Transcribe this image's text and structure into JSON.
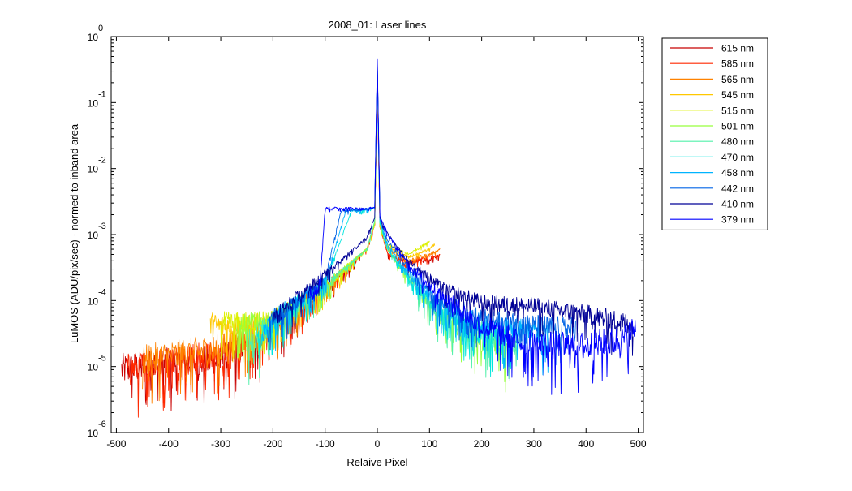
{
  "chart_data": {
    "type": "line",
    "title": "2008_01: Laser lines",
    "xlabel": "Relaive Pixel",
    "ylabel": "LuMOS (ADU/pix/sec) - normed to inband area",
    "xlim": [
      -510,
      510
    ],
    "ylim": [
      1e-06,
      1
    ],
    "yscale": "log",
    "grid": false,
    "legend_position": "outside-top-right",
    "x_ticks": [
      -500,
      -400,
      -300,
      -200,
      -100,
      0,
      100,
      200,
      300,
      400,
      500
    ],
    "x_tick_labels": [
      "-500",
      "-400",
      "-300",
      "-200",
      "-100",
      "0",
      "100",
      "200",
      "300",
      "400",
      "500"
    ],
    "y_ticks": [
      1e-06,
      1e-05,
      0.0001,
      0.001,
      0.01,
      0.1,
      1
    ],
    "y_tick_labels": [
      {
        "base": "10",
        "exp": "-6"
      },
      {
        "base": "10",
        "exp": "-5"
      },
      {
        "base": "10",
        "exp": "-4"
      },
      {
        "base": "10",
        "exp": "-3"
      },
      {
        "base": "10",
        "exp": "-2"
      },
      {
        "base": "10",
        "exp": "-1"
      },
      {
        "base": "10",
        "exp": "0"
      }
    ],
    "series": [
      {
        "name": "615 nm",
        "color": "#c80000",
        "x": [
          -490,
          -400,
          -300,
          -200,
          -100,
          -20,
          -5,
          0,
          5,
          20,
          60,
          100,
          120
        ],
        "y": [
          9e-06,
          1.1e-05,
          1.2e-05,
          3.5e-05,
          0.00014,
          0.0006,
          0.0014,
          0.2,
          0.0013,
          0.0005,
          0.00036,
          0.00042,
          0.00048
        ]
      },
      {
        "name": "585 nm",
        "color": "#ff2800",
        "x": [
          -480,
          -400,
          -300,
          -200,
          -100,
          -20,
          -5,
          0,
          5,
          20,
          60,
          100,
          120
        ],
        "y": [
          9e-06,
          1.2e-05,
          1.4e-05,
          3.8e-05,
          0.00015,
          0.0006,
          0.0014,
          0.22,
          0.0013,
          0.0005,
          0.00038,
          0.00045,
          0.0005
        ]
      },
      {
        "name": "565 nm",
        "color": "#ff8200",
        "x": [
          -450,
          -400,
          -300,
          -200,
          -100,
          -20,
          -5,
          0,
          5,
          20,
          60,
          100,
          120
        ],
        "y": [
          1.2e-05,
          1.4e-05,
          1.8e-05,
          4.2e-05,
          0.00016,
          0.0006,
          0.0014,
          0.25,
          0.0013,
          0.0006,
          0.0004,
          0.0005,
          0.0006
        ]
      },
      {
        "name": "545 nm",
        "color": "#ffc800",
        "x": [
          -320,
          -300,
          -250,
          -200,
          -100,
          -20,
          -5,
          0,
          5,
          20,
          60,
          100,
          110
        ],
        "y": [
          4.5e-05,
          4e-05,
          4e-05,
          4.5e-05,
          0.00015,
          0.0006,
          0.0014,
          0.27,
          0.0013,
          0.00065,
          0.00045,
          0.0006,
          0.0007
        ]
      },
      {
        "name": "515 nm",
        "color": "#dcf000",
        "x": [
          -300,
          -250,
          -200,
          -100,
          -20,
          -5,
          0,
          5,
          20,
          60,
          90,
          100
        ],
        "y": [
          4.5e-05,
          4.4e-05,
          5e-05,
          0.00016,
          0.0006,
          0.0015,
          0.3,
          0.0015,
          0.0007,
          0.0005,
          0.0007,
          0.0008
        ]
      },
      {
        "name": "501 nm",
        "color": "#96ff3c",
        "x": [
          -270,
          -250,
          -200,
          -100,
          -20,
          -5,
          0,
          5,
          20,
          60,
          120,
          200,
          250
        ],
        "y": [
          4e-05,
          4.2e-05,
          4.8e-05,
          0.00016,
          0.0006,
          0.0015,
          0.3,
          0.0014,
          0.0006,
          0.00022,
          6e-05,
          2.5e-05,
          2e-05
        ]
      },
      {
        "name": "480 nm",
        "color": "#50f0aa",
        "x": [
          -250,
          -200,
          -100,
          -20,
          -5,
          0,
          5,
          20,
          60,
          120,
          200,
          270
        ],
        "y": [
          2e-05,
          4.5e-05,
          0.00016,
          0.0006,
          0.0016,
          0.32,
          0.0015,
          0.0006,
          0.00022,
          6e-05,
          3e-05,
          2e-05
        ]
      },
      {
        "name": "470 nm",
        "color": "#00e6dc",
        "x": [
          -230,
          -200,
          -100,
          -50,
          -20,
          -5,
          0,
          5,
          20,
          60,
          120,
          200,
          260
        ],
        "y": [
          2e-05,
          4.5e-05,
          0.00018,
          0.00225,
          0.0024,
          0.0025,
          0.34,
          0.0015,
          0.0006,
          0.00022,
          7e-05,
          3e-05,
          2.5e-05
        ]
      },
      {
        "name": "458 nm",
        "color": "#00b4ff",
        "x": [
          -220,
          -200,
          -100,
          -60,
          -20,
          -5,
          0,
          5,
          20,
          60,
          120,
          200,
          280,
          330
        ],
        "y": [
          3e-05,
          5e-05,
          0.00019,
          0.0023,
          0.0024,
          0.0025,
          0.36,
          0.0016,
          0.0007,
          0.00025,
          8e-05,
          4e-05,
          3.5e-05,
          3e-05
        ]
      },
      {
        "name": "442 nm",
        "color": "#0064e6",
        "x": [
          -210,
          -200,
          -100,
          -70,
          -20,
          -5,
          0,
          5,
          20,
          60,
          120,
          200,
          300,
          380
        ],
        "y": [
          3e-05,
          5e-05,
          0.0002,
          0.0023,
          0.0024,
          0.0026,
          0.38,
          0.0017,
          0.0008,
          0.0003,
          0.0001,
          5e-05,
          4e-05,
          3.5e-05
        ]
      },
      {
        "name": "410 nm",
        "color": "#000096",
        "x": [
          -200,
          -100,
          -20,
          -5,
          0,
          5,
          20,
          60,
          120,
          200,
          300,
          400,
          450,
          490
        ],
        "y": [
          5e-05,
          0.00025,
          0.0009,
          0.0018,
          0.42,
          0.0018,
          0.001,
          0.0004,
          0.00016,
          9e-05,
          8e-05,
          6e-05,
          5e-05,
          4e-05
        ]
      },
      {
        "name": "379 nm",
        "color": "#0000ff",
        "x": [
          -130,
          -110,
          -100,
          -50,
          -20,
          -5,
          0,
          5,
          20,
          60,
          120,
          200,
          300,
          400,
          470,
          495
        ],
        "y": [
          0.00012,
          0.00018,
          0.0025,
          0.0025,
          0.0024,
          0.0026,
          0.45,
          0.0019,
          0.001,
          0.00035,
          0.00012,
          4e-05,
          2e-05,
          2e-05,
          2.5e-05,
          4e-05
        ]
      }
    ]
  }
}
